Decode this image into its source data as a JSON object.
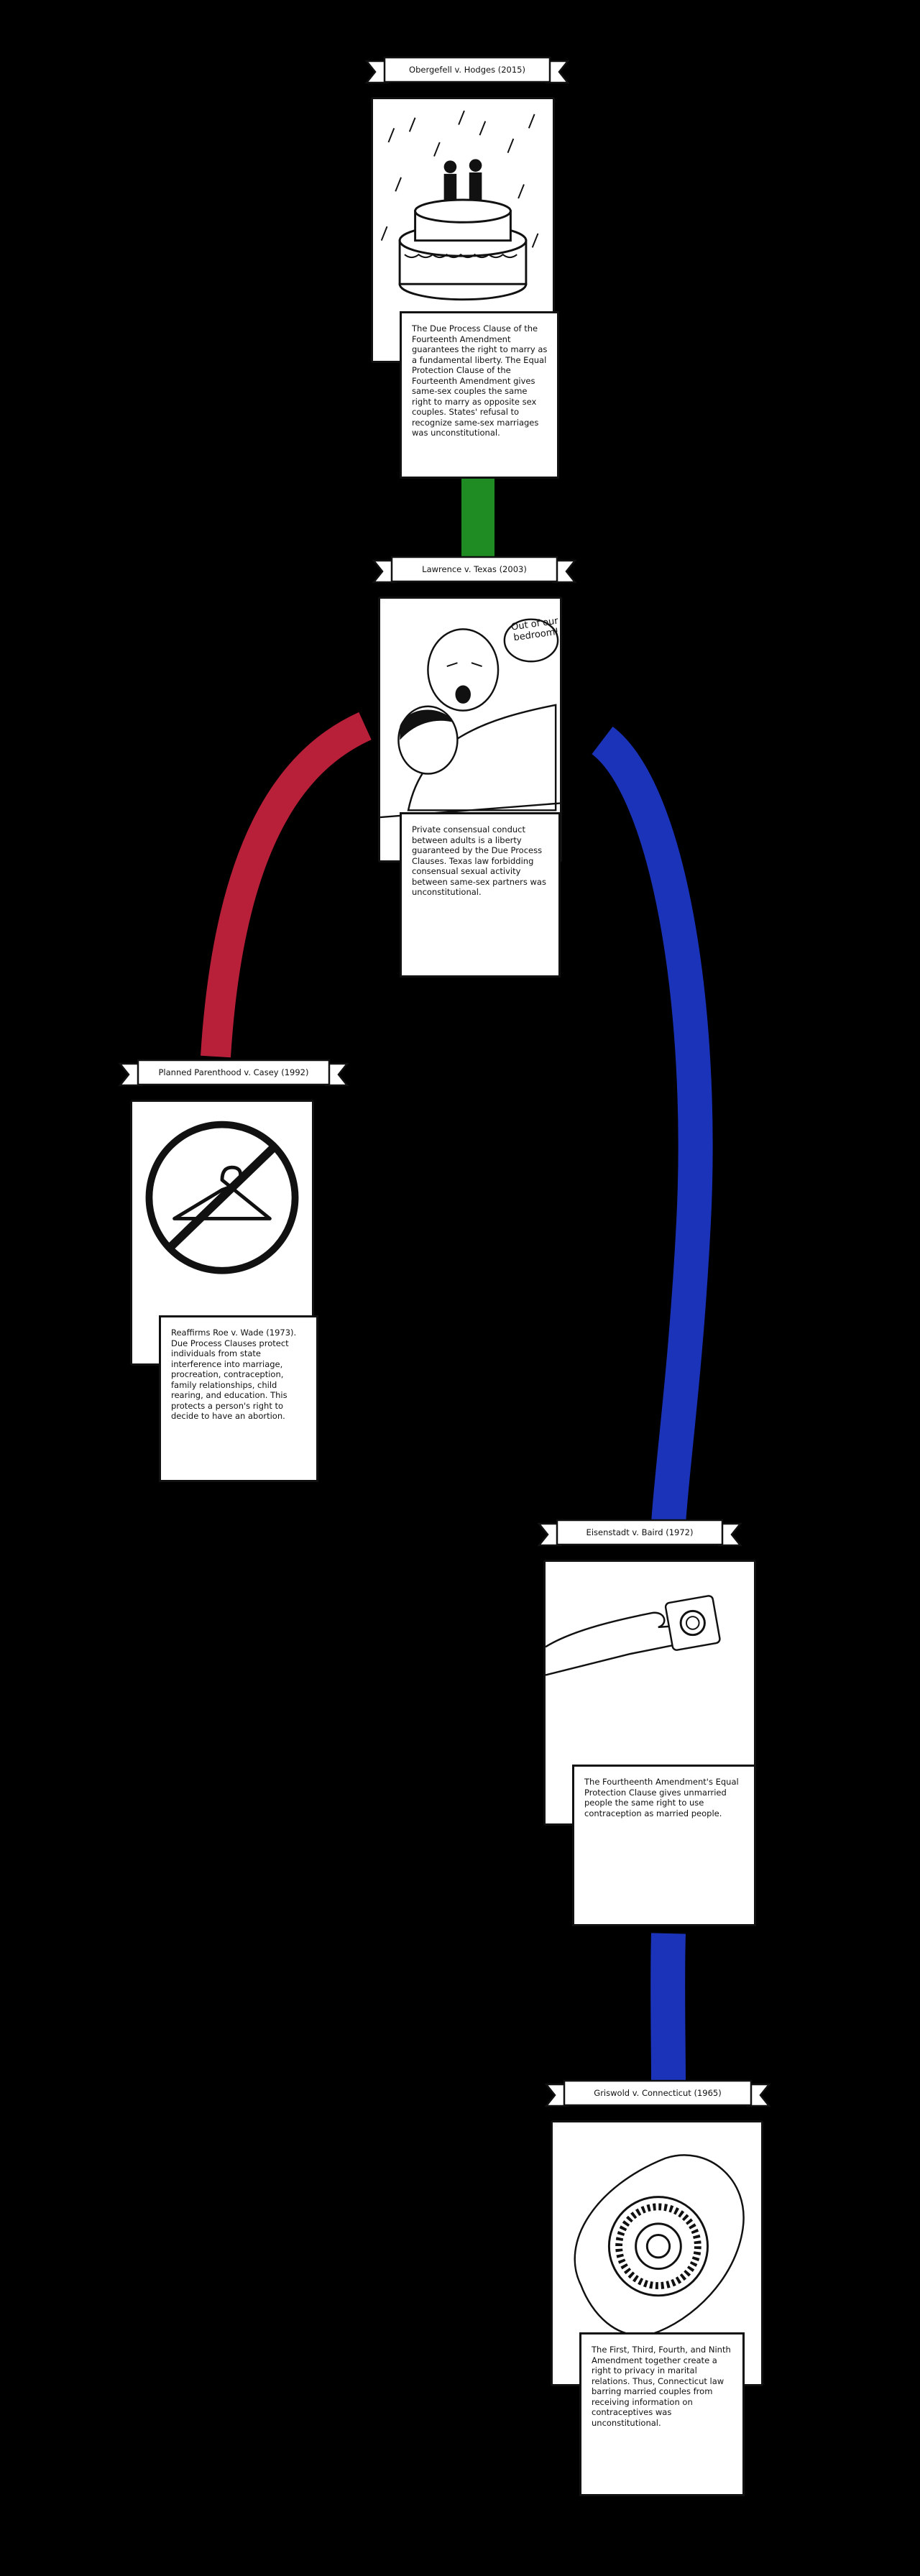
{
  "cases": [
    {
      "title": "Obergefell v. Hodges (2015)",
      "icon": "wedding-cake-icon",
      "description": "The Due Process Clause of the Fourteenth Amendment guarantees the right to marry as a fundamental liberty. The Equal Protection Clause of the Fourteenth Amendment gives same-sex couples the same right to marry as opposite sex couples. States' refusal to recognize same-sex marriages was unconstitutional."
    },
    {
      "title": "Lawrence v. Texas (2003)",
      "icon": "couple-in-bed-icon",
      "speech": "Out of our bedroom!",
      "description": "Private consensual conduct between adults is a liberty guaranteed by the Due Process Clauses. Texas law forbidding consensual sexual activity between same-sex partners was unconstitutional."
    },
    {
      "title": "Planned Parenthood v. Casey (1992)",
      "icon": "no-hanger-icon",
      "description": "Reaffirms Roe v. Wade (1973). Due Process Clauses protect individuals from state interference into marriage, procreation, contraception, family relationships, child rearing, and education. This protects a person's right to decide to have an abortion."
    },
    {
      "title": "Eisenstadt v. Baird (1972)",
      "icon": "hand-condom-icon",
      "description": "The Fourtheenth Amendment's Equal Protection Clause gives unmarried people the same right to use contraception as married people."
    },
    {
      "title": "Griswold v. Connecticut (1965)",
      "icon": "hand-pill-case-icon",
      "description": "The First, Third, Fourth, and Ninth Amendment together create a right to privacy in marital relations. Thus, Connecticut law barring married couples from receiving information on contraceptives was unconstitutional."
    }
  ],
  "colors": {
    "background": "#000000",
    "connector_green": "#1e8c23",
    "connector_red": "#b8203a",
    "connector_blue": "#1b33b8"
  }
}
